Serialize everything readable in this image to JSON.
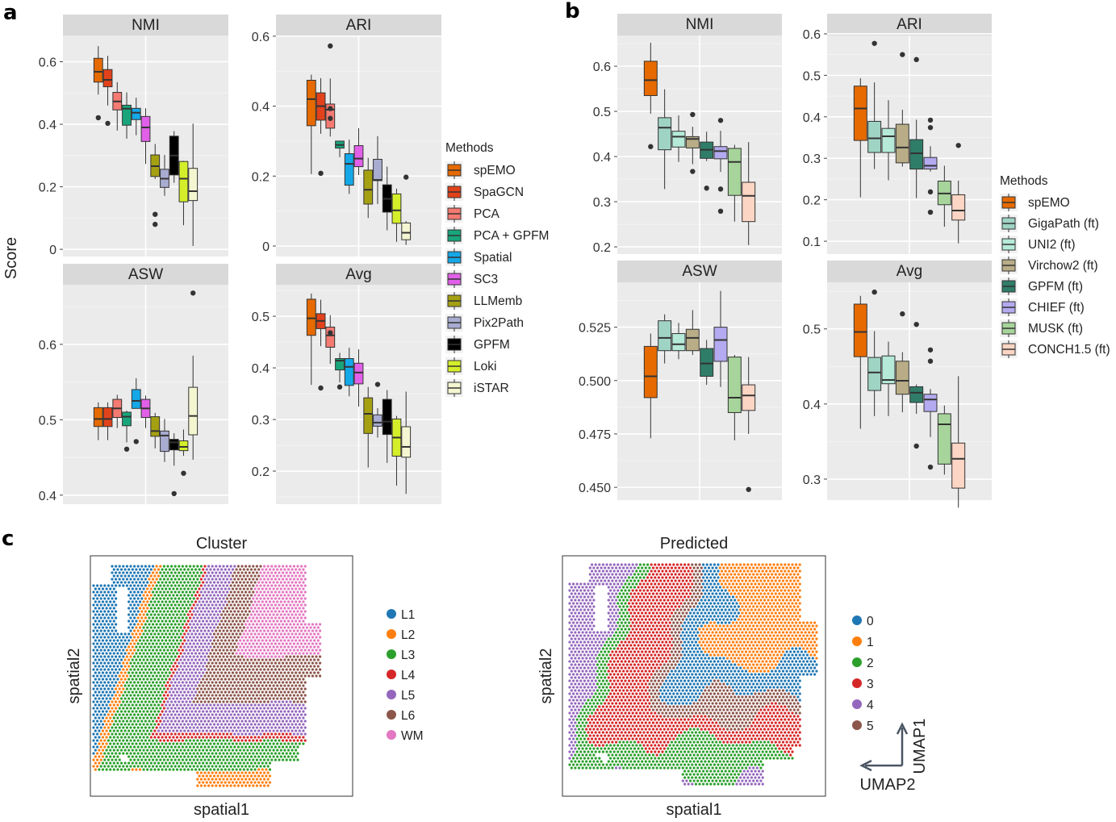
{
  "figure": {
    "panel_labels": [
      "a",
      "b",
      "c"
    ]
  },
  "chart_data": [
    {
      "type": "box",
      "panel": "a",
      "ylabel": "Score",
      "legend_title": "Methods",
      "legend_position": "right",
      "methods": [
        "spEMO",
        "SpaGCN",
        "PCA",
        "PCA + GPFM",
        "Spatial",
        "SC3",
        "LLMemb",
        "Pix2Path",
        "GPFM",
        "Loki",
        "iSTAR"
      ],
      "colors": [
        "#e66a00",
        "#e2421b",
        "#f47a72",
        "#19a57b",
        "#14a8e8",
        "#e060e8",
        "#a5a012",
        "#a8acd0",
        "#000000",
        "#d4ee2a",
        "#f4f6d2"
      ],
      "facets": [
        {
          "title": "NMI",
          "ylim": [
            -0.023,
            0.684
          ],
          "yticks": [
            "0",
            "0.2",
            "0.4",
            "0.6"
          ],
          "boxes": [
            [
              0.495,
              0.535,
              0.568,
              0.611,
              0.65,
              [
                0.421
              ]
            ],
            [
              0.46,
              0.52,
              0.542,
              0.575,
              0.619,
              [
                0.403
              ]
            ],
            [
              0.38,
              0.446,
              0.473,
              0.502,
              0.535,
              []
            ],
            [
              0.354,
              0.397,
              0.45,
              0.461,
              0.502,
              []
            ],
            [
              0.365,
              0.415,
              0.437,
              0.451,
              0.485,
              []
            ],
            [
              0.273,
              0.345,
              0.39,
              0.425,
              0.451,
              []
            ],
            [
              0.225,
              0.233,
              0.266,
              0.302,
              0.337,
              [
                0.112,
                0.08
              ]
            ],
            [
              0.171,
              0.198,
              0.226,
              0.256,
              0.302,
              []
            ],
            [
              0.213,
              0.238,
              0.3,
              0.362,
              0.378,
              []
            ],
            [
              0.077,
              0.152,
              0.226,
              0.281,
              0.283,
              []
            ],
            [
              0.011,
              0.156,
              0.186,
              0.259,
              0.402,
              []
            ]
          ]
        },
        {
          "title": "ARI",
          "ylim": [
            -0.03,
            0.602
          ],
          "yticks": [
            "0",
            "0.2",
            "0.4",
            "0.6"
          ],
          "boxes": [
            [
              0.206,
              0.344,
              0.42,
              0.474,
              0.49,
              []
            ],
            [
              0.321,
              0.36,
              0.4,
              0.438,
              0.48,
              [
                0.208
              ]
            ],
            [
              0.313,
              0.337,
              0.39,
              0.406,
              0.479,
              [
                0.572,
                0.393,
                0.365
              ]
            ],
            [
              0.254,
              0.28,
              0.289,
              0.3,
              0.301,
              []
            ],
            [
              0.149,
              0.174,
              0.235,
              0.264,
              0.304,
              []
            ],
            [
              0.203,
              0.227,
              0.25,
              0.287,
              0.337,
              []
            ],
            [
              0.08,
              0.12,
              0.161,
              0.217,
              0.252,
              []
            ],
            [
              0.12,
              0.187,
              0.189,
              0.248,
              0.314,
              []
            ],
            [
              0.045,
              0.097,
              0.135,
              0.175,
              0.227,
              []
            ],
            [
              0.012,
              0.065,
              0.102,
              0.149,
              0.164,
              []
            ],
            [
              0.003,
              0.018,
              0.038,
              0.066,
              0.071,
              [
                0.197
              ]
            ]
          ]
        },
        {
          "title": "ASW",
          "ylim": [
            0.388,
            0.679
          ],
          "yticks": [
            "0.4",
            "0.5",
            "0.6"
          ],
          "boxes": [
            [
              0.473,
              0.491,
              0.501,
              0.516,
              0.523,
              []
            ],
            [
              0.473,
              0.491,
              0.501,
              0.516,
              0.523,
              []
            ],
            [
              0.489,
              0.503,
              0.515,
              0.527,
              0.533,
              []
            ],
            [
              0.47,
              0.492,
              0.504,
              0.51,
              0.512,
              [
                0.461
              ]
            ],
            [
              0.515,
              0.515,
              0.525,
              0.54,
              0.555,
              [
                0.471
              ]
            ],
            [
              0.489,
              0.503,
              0.515,
              0.527,
              0.532,
              []
            ],
            [
              0.462,
              0.478,
              0.485,
              0.504,
              0.509,
              []
            ],
            [
              0.444,
              0.458,
              0.479,
              0.485,
              0.501,
              []
            ],
            [
              0.439,
              0.46,
              0.47,
              0.474,
              0.482,
              [
                0.402
              ]
            ],
            [
              0.452,
              0.459,
              0.464,
              0.472,
              0.487,
              [
                0.429
              ]
            ],
            [
              0.447,
              0.48,
              0.505,
              0.543,
              0.585,
              [
                0.668
              ]
            ]
          ]
        },
        {
          "title": "Avg",
          "ylim": [
            0.136,
            0.561
          ],
          "yticks": [
            "0.2",
            "0.3",
            "0.4",
            "0.5"
          ],
          "boxes": [
            [
              0.367,
              0.463,
              0.496,
              0.533,
              0.544,
              []
            ],
            [
              0.442,
              0.476,
              0.491,
              0.505,
              0.532,
              [
                0.361
              ]
            ],
            [
              0.408,
              0.44,
              0.463,
              0.479,
              0.502,
              [
                0.468
              ]
            ],
            [
              0.372,
              0.396,
              0.414,
              0.418,
              0.429,
              [
                0.363
              ]
            ],
            [
              0.345,
              0.366,
              0.402,
              0.418,
              0.439,
              []
            ],
            [
              0.325,
              0.369,
              0.391,
              0.409,
              0.436,
              []
            ],
            [
              0.207,
              0.273,
              0.311,
              0.342,
              0.363,
              []
            ],
            [
              0.265,
              0.287,
              0.294,
              0.309,
              0.322,
              [
                0.368
              ]
            ],
            [
              0.216,
              0.271,
              0.296,
              0.339,
              0.357,
              []
            ],
            [
              0.172,
              0.229,
              0.265,
              0.301,
              0.307,
              []
            ],
            [
              0.156,
              0.227,
              0.247,
              0.286,
              0.354,
              []
            ]
          ]
        }
      ]
    },
    {
      "type": "box",
      "panel": "b",
      "legend_title": "Methods",
      "legend_position": "right",
      "methods": [
        "spEMO",
        "GigaPath (ft)",
        "UNI2 (ft)",
        "Virchow2 (ft)",
        "GPFM (ft)",
        "CHIEF (ft)",
        "MUSK (ft)",
        "CONCH1.5 (ft)"
      ],
      "colors": [
        "#e66a00",
        "#9fd4c4",
        "#b5ead8",
        "#b8ad86",
        "#2f7d68",
        "#b3aaf0",
        "#a6d49a",
        "#fdd5c4"
      ],
      "facets": [
        {
          "title": "NMI",
          "ylim": [
            0.184,
            0.668
          ],
          "yticks": [
            "0.2",
            "0.3",
            "0.4",
            "0.5",
            "0.6"
          ],
          "boxes": [
            [
              0.495,
              0.535,
              0.569,
              0.611,
              0.652,
              [
                0.422
              ]
            ],
            [
              0.328,
              0.415,
              0.464,
              0.486,
              0.549,
              []
            ],
            [
              0.388,
              0.421,
              0.444,
              0.456,
              0.491,
              []
            ],
            [
              0.383,
              0.419,
              0.439,
              0.444,
              0.466,
              [
                0.493,
                0.367
              ]
            ],
            [
              0.39,
              0.396,
              0.415,
              0.432,
              0.455,
              [
                0.33
              ]
            ],
            [
              0.366,
              0.395,
              0.412,
              0.422,
              0.457,
              [
                0.48,
                0.328,
                0.279
              ]
            ],
            [
              0.256,
              0.314,
              0.388,
              0.418,
              0.426,
              []
            ],
            [
              0.204,
              0.256,
              0.313,
              0.343,
              0.432,
              []
            ]
          ]
        },
        {
          "title": "ARI",
          "ylim": [
            0.069,
            0.596
          ],
          "yticks": [
            "0.1",
            "0.2",
            "0.3",
            "0.4",
            "0.5",
            "0.6"
          ],
          "boxes": [
            [
              0.206,
              0.343,
              0.42,
              0.474,
              0.493,
              []
            ],
            [
              0.274,
              0.314,
              0.348,
              0.389,
              0.483,
              [
                0.577
              ]
            ],
            [
              0.247,
              0.314,
              0.353,
              0.372,
              0.44,
              []
            ],
            [
              0.28,
              0.289,
              0.326,
              0.382,
              0.417,
              [
                0.55
              ]
            ],
            [
              0.204,
              0.274,
              0.312,
              0.345,
              0.393,
              [
                0.538
              ]
            ],
            [
              0.268,
              0.274,
              0.282,
              0.302,
              0.329,
              [
                0.392,
                0.374,
                0.219,
                0.17
              ]
            ],
            [
              0.135,
              0.188,
              0.215,
              0.245,
              0.282,
              []
            ],
            [
              0.095,
              0.151,
              0.174,
              0.212,
              0.246,
              [
                0.331
              ]
            ]
          ]
        },
        {
          "title": "ASW",
          "ylim": [
            0.444,
            0.546
          ],
          "yticks": [
            "0.450",
            "0.475",
            "0.500",
            "0.525"
          ],
          "boxes": [
            [
              0.473,
              0.492,
              0.502,
              0.516,
              0.522,
              []
            ],
            [
              0.508,
              0.514,
              0.52,
              0.528,
              0.531,
              []
            ],
            [
              0.51,
              0.514,
              0.517,
              0.522,
              0.527,
              []
            ],
            [
              0.512,
              0.514,
              0.52,
              0.524,
              0.533,
              []
            ],
            [
              0.498,
              0.502,
              0.508,
              0.515,
              0.519,
              []
            ],
            [
              0.497,
              0.509,
              0.519,
              0.525,
              0.542,
              []
            ],
            [
              0.472,
              0.485,
              0.492,
              0.511,
              0.512,
              []
            ],
            [
              0.475,
              0.486,
              0.493,
              0.498,
              0.511,
              [
                0.449
              ]
            ]
          ]
        },
        {
          "title": "Avg",
          "ylim": [
            0.272,
            0.562
          ],
          "yticks": [
            "0.3",
            "0.4",
            "0.5"
          ],
          "boxes": [
            [
              0.367,
              0.463,
              0.496,
              0.533,
              0.544,
              []
            ],
            [
              0.384,
              0.418,
              0.442,
              0.462,
              0.497,
              [
                0.549
              ]
            ],
            [
              0.384,
              0.427,
              0.432,
              0.464,
              0.483,
              []
            ],
            [
              0.389,
              0.413,
              0.431,
              0.457,
              0.469,
              [
                0.52
              ]
            ],
            [
              0.387,
              0.402,
              0.415,
              0.423,
              0.426,
              [
                0.506,
                0.344
              ]
            ],
            [
              0.356,
              0.39,
              0.406,
              0.413,
              0.42,
              [
                0.472,
                0.457,
                0.316
              ]
            ],
            [
              0.306,
              0.32,
              0.373,
              0.387,
              0.398,
              []
            ],
            [
              0.262,
              0.288,
              0.327,
              0.348,
              0.437,
              []
            ]
          ]
        }
      ]
    },
    {
      "type": "scatter",
      "panel": "c",
      "title": "Cluster",
      "xlabel": "spatial1",
      "ylabel": "spatial2",
      "legend_position": "right",
      "labels": [
        "L1",
        "L2",
        "L3",
        "L4",
        "L5",
        "L6",
        "WM"
      ],
      "colors": [
        "#1f77b4",
        "#ff7f0e",
        "#2ca02c",
        "#d62728",
        "#9467bd",
        "#8c564b",
        "#e377c2"
      ]
    },
    {
      "type": "scatter",
      "panel": "c",
      "title": "Predicted",
      "xlabel": "spatial1",
      "ylabel": "spatial2",
      "legend_position": "right",
      "labels": [
        "0",
        "1",
        "2",
        "3",
        "4",
        "5"
      ],
      "colors": [
        "#1f77b4",
        "#ff7f0e",
        "#2ca02c",
        "#d62728",
        "#9467bd",
        "#8c564b"
      ],
      "umap_axes": {
        "x": "UMAP2",
        "y": "UMAP1"
      }
    }
  ]
}
